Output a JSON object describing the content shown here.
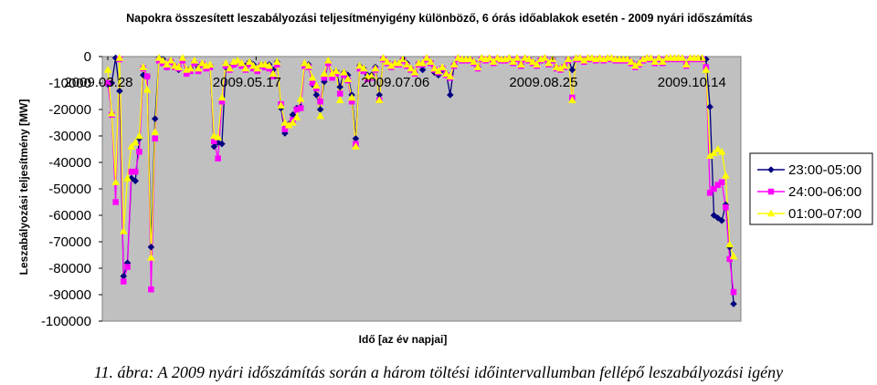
{
  "chart_data": {
    "type": "line",
    "title": "Napokra összesített leszabályozási teljesítményigény különböző, 6 órás időablakok esetén - 2009 nyári időszámítás",
    "xlabel": "Idő [az év napjai]",
    "ylabel": "Leszabályozási teljesítmény [MW]",
    "ylim": [
      -100000,
      0
    ],
    "yticks": [
      "0",
      "-10000",
      "-20000",
      "-30000",
      "-40000",
      "-50000",
      "-60000",
      "-70000",
      "-80000",
      "-90000",
      "-100000"
    ],
    "xticks": [
      "2009.03.28",
      "2009.05.17",
      "2009.07.06",
      "2009.08.25",
      "2009.10.14"
    ],
    "x_start": "2009.03.28",
    "x_end": "2009.10.25",
    "grid": false,
    "legend_position": "right",
    "plot_background": "#c0c0c0",
    "series": [
      {
        "name": "23:00-05:00",
        "color": "#000080",
        "marker": "diamond",
        "values": [
          -10500,
          -10000,
          -500,
          -13000,
          -83000,
          -78000,
          -46000,
          -47000,
          -31000,
          -7000,
          -7500,
          -72000,
          -23500,
          -500,
          -1000,
          -4000,
          -1500,
          -3500,
          -5000,
          -1000,
          -5500,
          -4500,
          -2000,
          -4000,
          -3000,
          -3500,
          -3500,
          -34000,
          -32500,
          -33000,
          -4000,
          -4000,
          -3000,
          -2000,
          -3000,
          -3500,
          -2000,
          -3000,
          -4500,
          -3000,
          -3000,
          -3000,
          -5000,
          -2000,
          -19500,
          -29000,
          -25500,
          -22000,
          -19500,
          -19000,
          -3000,
          -3000,
          -10500,
          -14500,
          -20000,
          -9500,
          -2000,
          -7000,
          -5500,
          -11500,
          -6000,
          -7000,
          -14500,
          -31000,
          -3500,
          -4500,
          -7000,
          -7000,
          -4000,
          -14500,
          -500,
          -2000,
          -3500,
          -2500,
          -2500,
          -1000,
          -2500,
          -4500,
          -6000,
          -2500,
          -5000,
          -500,
          -2000,
          -6000,
          -7000,
          -5000,
          -6500,
          -14500,
          -3000,
          -500,
          -1000,
          -1000,
          -1000,
          -2000,
          -4000,
          -500,
          -1000,
          -500,
          -2000,
          -500,
          -1000,
          -1000,
          -500,
          -2000,
          -500,
          -3000,
          -500,
          -1000,
          -2000,
          -3000,
          -1000,
          -500,
          -2500,
          -1000,
          -4000,
          -4500,
          -3500,
          -1000,
          -5000,
          -500,
          -500,
          -1500,
          -500,
          -500,
          -1000,
          -500,
          -1000,
          -500,
          -500,
          -1000,
          -1000,
          -1000,
          -1000,
          -2000,
          -3500,
          -2500,
          -1000,
          -500,
          -500,
          -2000,
          -500,
          -2000,
          -500,
          -500,
          -500,
          -500,
          -500,
          -3000,
          -500,
          -500,
          -500,
          -500,
          -1000,
          -19000,
          -60000,
          -61000,
          -62000,
          -56000,
          -72000,
          -93500
        ]
      },
      {
        "name": "24:00-06:00",
        "color": "#ff00ff",
        "marker": "square",
        "values": [
          -10000,
          -22000,
          -55000,
          -1000,
          -85000,
          -79500,
          -43500,
          -43500,
          -36000,
          -4500,
          -7500,
          -88000,
          -31000,
          -1500,
          -2500,
          -4000,
          -2000,
          -4000,
          -4500,
          -1500,
          -6500,
          -5500,
          -2500,
          -5500,
          -3000,
          -4500,
          -4000,
          -32000,
          -38500,
          -17000,
          -3500,
          -5000,
          -3000,
          -2500,
          -3500,
          -5000,
          -3000,
          -4500,
          -5500,
          -3500,
          -4000,
          -4500,
          -7500,
          -3000,
          -18000,
          -27500,
          -26000,
          -24000,
          -20000,
          -19500,
          -3500,
          -4000,
          -10000,
          -12000,
          -17000,
          -8000,
          -2500,
          -8000,
          -6500,
          -14000,
          -7000,
          -9000,
          -17000,
          -33000,
          -4500,
          -5500,
          -8500,
          -8000,
          -5000,
          -16500,
          -1000,
          -2500,
          -4000,
          -3000,
          -3000,
          -1500,
          -3500,
          -5000,
          -6500,
          -3000,
          -3000,
          -1000,
          -2500,
          -5000,
          -6000,
          -4500,
          -7000,
          -8000,
          -3500,
          -1000,
          -1500,
          -1500,
          -1500,
          -2500,
          -4500,
          -1000,
          -1500,
          -1000,
          -2500,
          -1000,
          -1500,
          -1500,
          -1000,
          -2500,
          -1000,
          -3500,
          -1000,
          -1500,
          -2500,
          -3500,
          -1500,
          -1000,
          -3000,
          -1500,
          -4500,
          -5000,
          -4000,
          -1500,
          -15500,
          -1000,
          -1000,
          -2000,
          -1000,
          -1000,
          -1500,
          -1000,
          -1500,
          -1000,
          -1000,
          -1500,
          -1500,
          -1500,
          -1500,
          -2500,
          -4000,
          -3000,
          -1500,
          -1000,
          -1000,
          -2500,
          -1000,
          -2500,
          -1000,
          -1000,
          -1000,
          -1000,
          -1000,
          -3500,
          -1000,
          -1000,
          -1000,
          -1000,
          -4000,
          -51500,
          -50000,
          -48500,
          -47500,
          -57000,
          -76500,
          -89000
        ]
      },
      {
        "name": "01:00-07:00",
        "color": "#ffff00",
        "marker": "triangle",
        "values": [
          -5000,
          -21500,
          -47500,
          -500,
          -66000,
          -46000,
          -34000,
          -32500,
          -30000,
          -4000,
          -12500,
          -76000,
          -28500,
          -500,
          -1500,
          -3000,
          -1500,
          -3500,
          -4000,
          -500,
          -5000,
          -4500,
          -1500,
          -4500,
          -2500,
          -3500,
          -3000,
          -30000,
          -30500,
          -15500,
          -2500,
          -4500,
          -2000,
          -1500,
          -2500,
          -4500,
          -2000,
          -3500,
          -4500,
          -3000,
          -3000,
          -3500,
          -6500,
          -2000,
          -18500,
          -25000,
          -26000,
          -25000,
          -23000,
          -16000,
          -2500,
          -3500,
          -8000,
          -11000,
          -22500,
          -6500,
          -1500,
          -6500,
          -5500,
          -16500,
          -6000,
          -8500,
          -15500,
          -34000,
          -3500,
          -4500,
          -7500,
          -7500,
          -4500,
          -16500,
          -500,
          -2000,
          -3500,
          -2500,
          -2500,
          -1000,
          -3000,
          -4500,
          -6000,
          -2500,
          -2500,
          -500,
          -2000,
          -4500,
          -5500,
          -4000,
          -6500,
          -7500,
          -3000,
          -500,
          -1000,
          -1000,
          -1000,
          -2000,
          -4000,
          -500,
          -1000,
          -500,
          -2000,
          -500,
          -1000,
          -1000,
          -500,
          -2000,
          -500,
          -3000,
          -500,
          -1000,
          -2000,
          -3000,
          -1000,
          -500,
          -2500,
          -1000,
          -4000,
          -4500,
          -3500,
          -1000,
          -16500,
          -500,
          -500,
          -1500,
          -500,
          -500,
          -1000,
          -500,
          -1000,
          -500,
          -500,
          -1000,
          -1000,
          -1000,
          -1000,
          -2000,
          -3500,
          -2500,
          -1000,
          -500,
          -500,
          -2000,
          -500,
          -2000,
          -500,
          -500,
          -500,
          -500,
          -500,
          -3000,
          -500,
          -500,
          -500,
          -500,
          -5000,
          -37500,
          -36500,
          -35000,
          -36000,
          -45000,
          -71000,
          -75500
        ]
      }
    ]
  },
  "caption": "11. ábra: A 2009 nyári időszámítás során a három töltési időintervallumban fellépő leszabályozási igény"
}
